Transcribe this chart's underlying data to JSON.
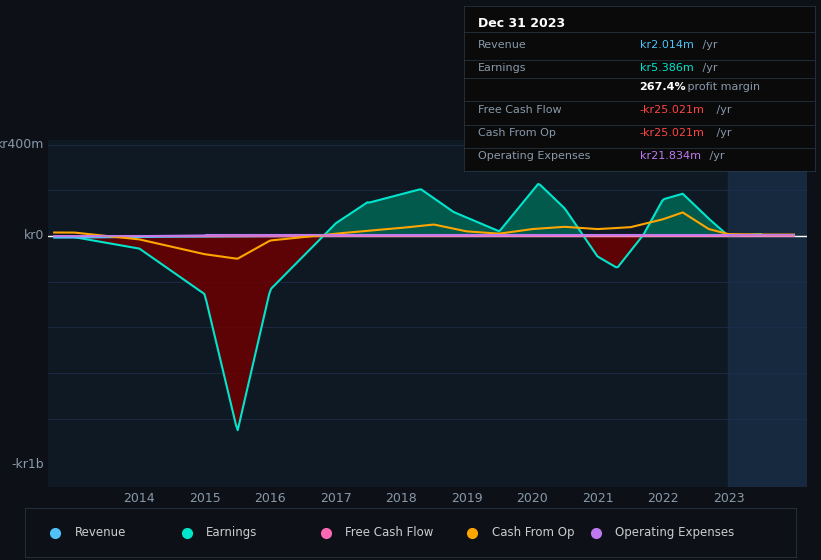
{
  "bg_color": "#0d1117",
  "plot_bg_color": "#0f1923",
  "grid_color": "#1e3050",
  "ylabel_top": "kr400m",
  "ylabel_zero": "kr0",
  "ylabel_bottom": "-kr1b",
  "xlim": [
    2012.6,
    2024.2
  ],
  "ylim_bottom": -1100,
  "ylim_top": 420,
  "x_ticks": [
    2014,
    2015,
    2016,
    2017,
    2018,
    2019,
    2020,
    2021,
    2022,
    2023
  ],
  "colors": {
    "revenue": "#4fc3f7",
    "earnings": "#00e5cc",
    "free_cash_flow": "#ff69b4",
    "cash_from_op": "#ffa500",
    "operating_expenses": "#bf7af0",
    "earnings_fill_pos": "#006655",
    "earnings_fill_neg": "#6b0000",
    "highlight_region": "#1a2e45",
    "zero_line": "#ffffff",
    "grid": "#1e3050"
  },
  "legend": [
    {
      "label": "Revenue",
      "color": "#4fc3f7"
    },
    {
      "label": "Earnings",
      "color": "#00e5cc"
    },
    {
      "label": "Free Cash Flow",
      "color": "#ff69b4"
    },
    {
      "label": "Cash From Op",
      "color": "#ffa500"
    },
    {
      "label": "Operating Expenses",
      "color": "#bf7af0"
    }
  ],
  "infobox": {
    "date": "Dec 31 2023",
    "rows": [
      {
        "label": "Revenue",
        "value": "kr2.014m",
        "suffix": " /yr",
        "value_color": "#4fc3f7",
        "label_color": "#8899aa"
      },
      {
        "label": "Earnings",
        "value": "kr5.386m",
        "suffix": " /yr",
        "value_color": "#00e5cc",
        "label_color": "#8899aa"
      },
      {
        "label": "",
        "value": "267.4%",
        "suffix": " profit margin",
        "value_color": "#ffffff",
        "label_color": "#8899aa",
        "bold": true
      },
      {
        "label": "Free Cash Flow",
        "value": "-kr25.021m",
        "suffix": " /yr",
        "value_color": "#ff4444",
        "label_color": "#8899aa"
      },
      {
        "label": "Cash From Op",
        "value": "-kr25.021m",
        "suffix": " /yr",
        "value_color": "#ff4444",
        "label_color": "#8899aa"
      },
      {
        "label": "Operating Expenses",
        "value": "kr21.834m",
        "suffix": " /yr",
        "value_color": "#bf7af0",
        "label_color": "#8899aa"
      }
    ]
  }
}
